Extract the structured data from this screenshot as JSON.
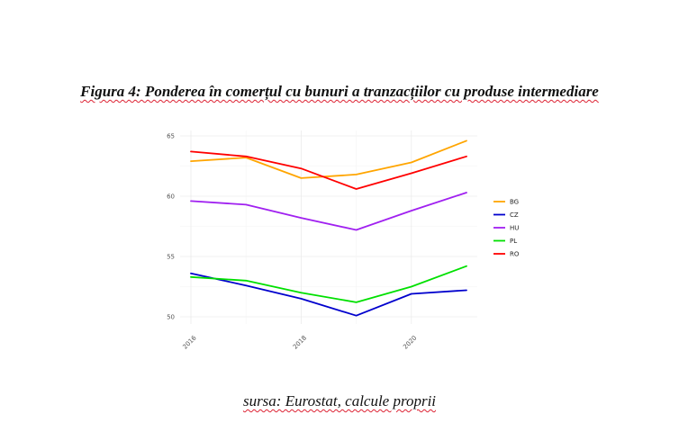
{
  "figure": {
    "title": "Figura 4: Ponderea în comerțul cu bunuri a tranzacțiilor cu produse intermediare",
    "source": "sursa: Eurostat, calcule proprii"
  },
  "chart_data": {
    "type": "line",
    "title": "",
    "xlabel": "",
    "ylabel": "",
    "x": [
      2016,
      2017,
      2018,
      2019,
      2020,
      2021
    ],
    "x_tick_values": [
      2016,
      2018,
      2020
    ],
    "x_tick_labels": [
      "2016",
      "2018",
      "2020"
    ],
    "y_tick_values": [
      50,
      55,
      60,
      65
    ],
    "y_tick_labels": [
      "50",
      "55",
      "60",
      "65"
    ],
    "xlim": [
      2016,
      2021
    ],
    "ylim": [
      50,
      65
    ],
    "grid": true,
    "legend_position": "right",
    "series": [
      {
        "name": "BG",
        "color": "#FFA500",
        "values": [
          62.9,
          63.2,
          61.5,
          61.8,
          62.8,
          64.6
        ]
      },
      {
        "name": "CZ",
        "color": "#0000CD",
        "values": [
          53.6,
          52.6,
          51.5,
          50.1,
          51.9,
          52.2
        ]
      },
      {
        "name": "HU",
        "color": "#A020F0",
        "values": [
          59.6,
          59.3,
          58.2,
          57.2,
          58.8,
          60.3
        ]
      },
      {
        "name": "PL",
        "color": "#00E000",
        "values": [
          53.3,
          53.0,
          52.0,
          51.2,
          52.5,
          54.2
        ]
      },
      {
        "name": "RO",
        "color": "#FF0000",
        "values": [
          63.7,
          63.3,
          62.3,
          60.6,
          61.9,
          63.3
        ]
      }
    ]
  }
}
